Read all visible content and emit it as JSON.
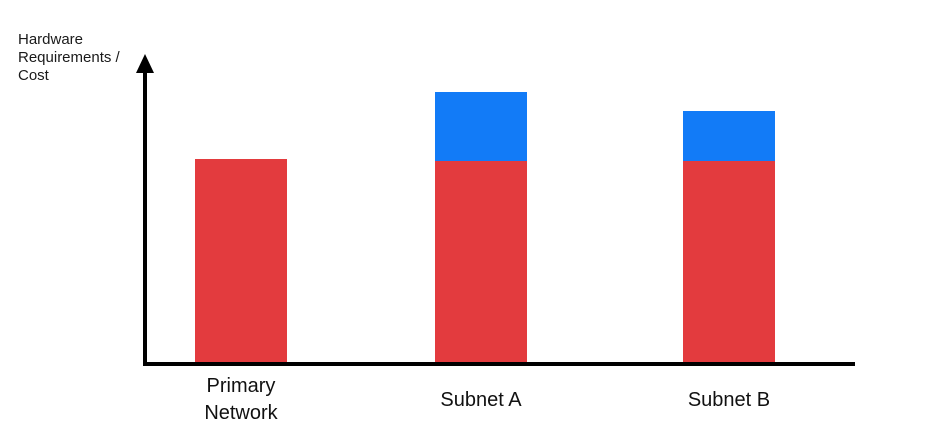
{
  "chart": {
    "y_axis_label": "Hardware Requirements / Cost"
  },
  "chart_data": {
    "type": "bar",
    "stacked": true,
    "title": "",
    "xlabel": "",
    "ylabel": "Hardware Requirements / Cost",
    "categories": [
      "Primary Network",
      "Subnet A",
      "Subnet B"
    ],
    "series": [
      {
        "name": "red-segment",
        "color": "#E33B3E",
        "values": [
          66.5,
          66.0,
          66.0
        ]
      },
      {
        "name": "blue-segment",
        "color": "#127BF7",
        "values": [
          0,
          22.5,
          16.5
        ]
      }
    ],
    "ylim": [
      0,
      100
    ],
    "y_tick_labels": "none",
    "x_tick_labels": [
      "Primary Network",
      "Subnet A",
      "Subnet B"
    ],
    "grid": false,
    "legend": "none",
    "axis_style": "arrow-y-axis"
  }
}
